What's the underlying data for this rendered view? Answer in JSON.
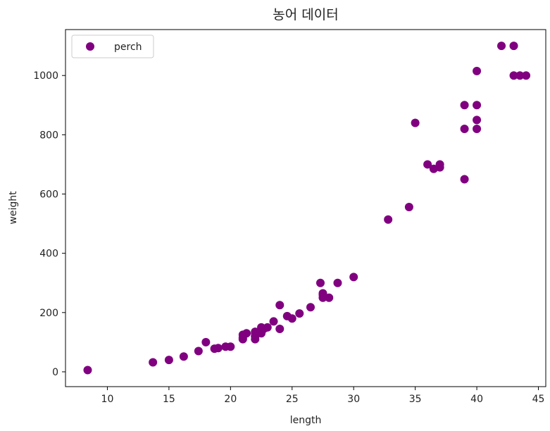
{
  "chart_data": {
    "type": "scatter",
    "title": "농어 데이터",
    "xlabel": "length",
    "ylabel": "weight",
    "xlim": [
      6.6,
      45.6
    ],
    "ylim": [
      -50,
      1155
    ],
    "xticks": [
      10,
      15,
      20,
      25,
      30,
      35,
      40,
      45
    ],
    "yticks": [
      0,
      200,
      400,
      600,
      800,
      1000
    ],
    "grid": false,
    "legend": "top-left",
    "series": [
      {
        "name": "perch",
        "color": "#800080",
        "points": [
          [
            8.4,
            5.9
          ],
          [
            13.7,
            32.0
          ],
          [
            15.0,
            40.0
          ],
          [
            16.2,
            51.5
          ],
          [
            17.4,
            70.0
          ],
          [
            18.0,
            100.0
          ],
          [
            18.7,
            78.0
          ],
          [
            19.0,
            80.0
          ],
          [
            19.6,
            85.0
          ],
          [
            20.0,
            85.0
          ],
          [
            21.0,
            110.0
          ],
          [
            21.0,
            115.0
          ],
          [
            21.0,
            125.0
          ],
          [
            21.3,
            130.0
          ],
          [
            22.0,
            120.0
          ],
          [
            22.0,
            120.0
          ],
          [
            22.0,
            130.0
          ],
          [
            22.0,
            135.0
          ],
          [
            22.0,
            110.0
          ],
          [
            22.5,
            130.0
          ],
          [
            22.5,
            150.0
          ],
          [
            22.7,
            145.0
          ],
          [
            23.0,
            150.0
          ],
          [
            23.5,
            170.0
          ],
          [
            24.0,
            225.0
          ],
          [
            24.0,
            145.0
          ],
          [
            24.6,
            188.0
          ],
          [
            25.0,
            180.0
          ],
          [
            25.6,
            197.0
          ],
          [
            26.5,
            218.0
          ],
          [
            27.3,
            300.0
          ],
          [
            27.5,
            260.0
          ],
          [
            27.5,
            265.0
          ],
          [
            27.5,
            250.0
          ],
          [
            28.0,
            250.0
          ],
          [
            28.7,
            300.0
          ],
          [
            30.0,
            320.0
          ],
          [
            32.8,
            514.0
          ],
          [
            34.5,
            556.0
          ],
          [
            35.0,
            840.0
          ],
          [
            36.5,
            685.0
          ],
          [
            36.0,
            700.0
          ],
          [
            37.0,
            700.0
          ],
          [
            37.0,
            690.0
          ],
          [
            39.0,
            900.0
          ],
          [
            39.0,
            650.0
          ],
          [
            39.0,
            820.0
          ],
          [
            40.0,
            850.0
          ],
          [
            40.0,
            900.0
          ],
          [
            40.0,
            1015.0
          ],
          [
            40.0,
            820.0
          ],
          [
            42.0,
            1100.0
          ],
          [
            43.0,
            1000.0
          ],
          [
            43.0,
            1100.0
          ],
          [
            43.5,
            1000.0
          ],
          [
            44.0,
            1000.0
          ]
        ]
      }
    ]
  }
}
